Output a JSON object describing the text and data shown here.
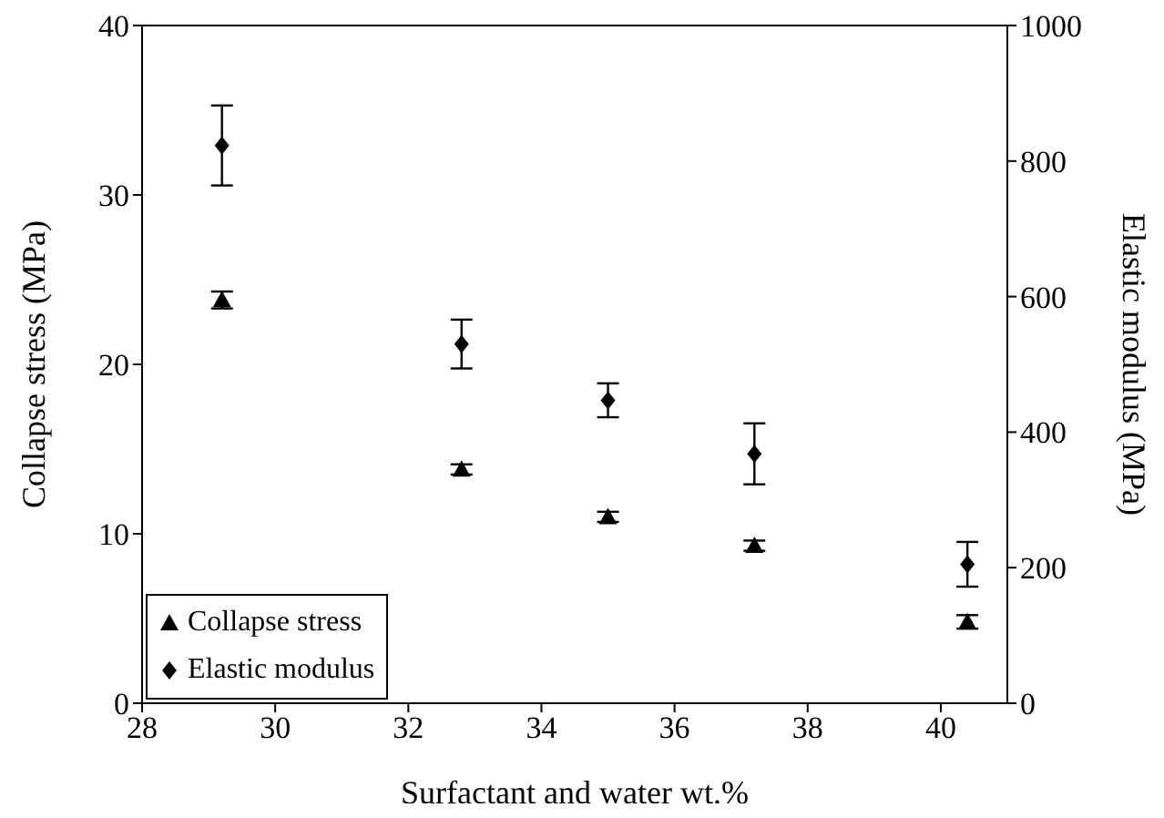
{
  "chart_data": {
    "type": "scatter",
    "xlabel": "Surfactant and water wt.%",
    "ylabel": "Collapse stress (MPa)",
    "y2label": "Elastic modulus (MPa)",
    "x": [
      29.2,
      32.8,
      35.0,
      37.2,
      40.4
    ],
    "series": [
      {
        "name": "Collapse stress",
        "color": "#000000",
        "marker": "triangle",
        "values": [
          23.8,
          13.8,
          11.0,
          9.3,
          4.8
        ],
        "errors": [
          0.5,
          0.3,
          0.3,
          0.3,
          0.4
        ]
      },
      {
        "name": "Elastic modulus",
        "color": "#000000",
        "marker": "diamond",
        "axis": "y2",
        "values": [
          823,
          530,
          447,
          368,
          205
        ],
        "errors": [
          59,
          36,
          25,
          45,
          33
        ]
      }
    ],
    "xlim": [
      28,
      41
    ],
    "xticks": [
      28,
      30,
      32,
      34,
      36,
      38,
      40
    ],
    "ylim": [
      0,
      40
    ],
    "yticks": [
      0,
      10,
      20,
      30,
      40
    ],
    "y2lim": [
      0,
      1000
    ],
    "y2ticks": [
      0,
      200,
      400,
      600,
      800,
      1000
    ],
    "grid": false,
    "legend": "bottom left"
  }
}
